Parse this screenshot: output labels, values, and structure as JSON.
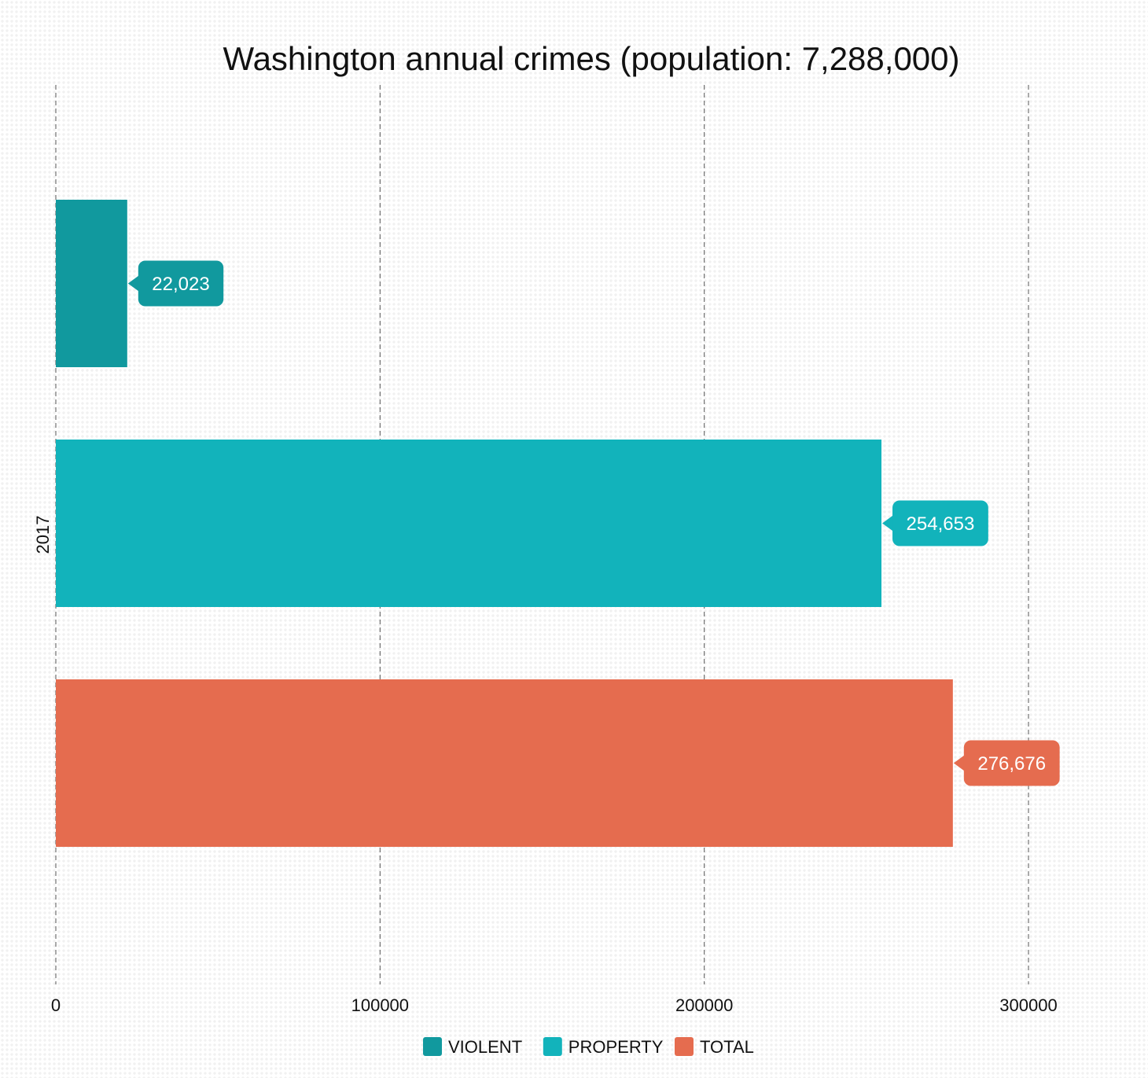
{
  "chart_data": {
    "type": "bar",
    "orientation": "horizontal",
    "title": "Washington annual crimes (population: 7,288,000)",
    "xlabel": "",
    "ylabel": "",
    "categories": [
      "2017"
    ],
    "series": [
      {
        "name": "VIOLENT",
        "values": [
          22023
        ],
        "label": "22,023",
        "color": "#11999e"
      },
      {
        "name": "PROPERTY",
        "values": [
          254653
        ],
        "label": "254,653",
        "color": "#12b3bb"
      },
      {
        "name": "TOTAL",
        "values": [
          276676
        ],
        "label": "276,676",
        "color": "#e56c4f"
      }
    ],
    "xlim": [
      0,
      315000
    ],
    "xticks": [
      0,
      100000,
      200000,
      300000
    ],
    "xtick_labels": [
      "0",
      "100000",
      "200000",
      "300000"
    ],
    "grid": "vertical dashed",
    "legend": "bottom"
  }
}
